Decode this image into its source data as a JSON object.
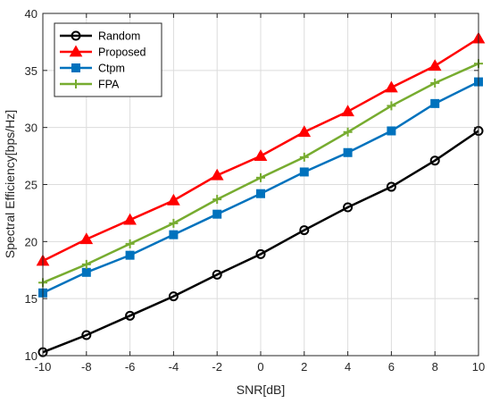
{
  "chart_data": {
    "type": "line",
    "title": "",
    "xlabel": "SNR[dB]",
    "ylabel": "Spectral Efficiency[bps/Hz]",
    "xlim": [
      -10,
      10
    ],
    "ylim": [
      10,
      40
    ],
    "xticks": [
      -10,
      -8,
      -6,
      -4,
      -2,
      0,
      2,
      4,
      6,
      8,
      10
    ],
    "yticks": [
      10,
      15,
      20,
      25,
      30,
      35,
      40
    ],
    "grid": true,
    "legend_position": "top-left",
    "x": [
      -10,
      -8,
      -6,
      -4,
      -2,
      0,
      2,
      4,
      6,
      8,
      10
    ],
    "series": [
      {
        "name": "Random",
        "color": "#000000",
        "marker": "circle",
        "values": [
          10.3,
          11.8,
          13.5,
          15.2,
          17.1,
          18.9,
          21.0,
          23.0,
          24.8,
          27.1,
          29.7
        ]
      },
      {
        "name": "Proposed",
        "color": "#ff0000",
        "marker": "triangle",
        "values": [
          18.3,
          20.2,
          21.9,
          23.6,
          25.8,
          27.5,
          29.6,
          31.4,
          33.5,
          35.4,
          37.8
        ]
      },
      {
        "name": "Ctpm",
        "color": "#0072bd",
        "marker": "square",
        "values": [
          15.5,
          17.3,
          18.8,
          20.6,
          22.4,
          24.2,
          26.1,
          27.8,
          29.7,
          32.1,
          34.0
        ]
      },
      {
        "name": "FPA",
        "color": "#77ac30",
        "marker": "plus",
        "values": [
          16.4,
          18.0,
          19.8,
          21.6,
          23.7,
          25.6,
          27.4,
          29.6,
          31.9,
          33.9,
          35.6
        ]
      }
    ]
  }
}
